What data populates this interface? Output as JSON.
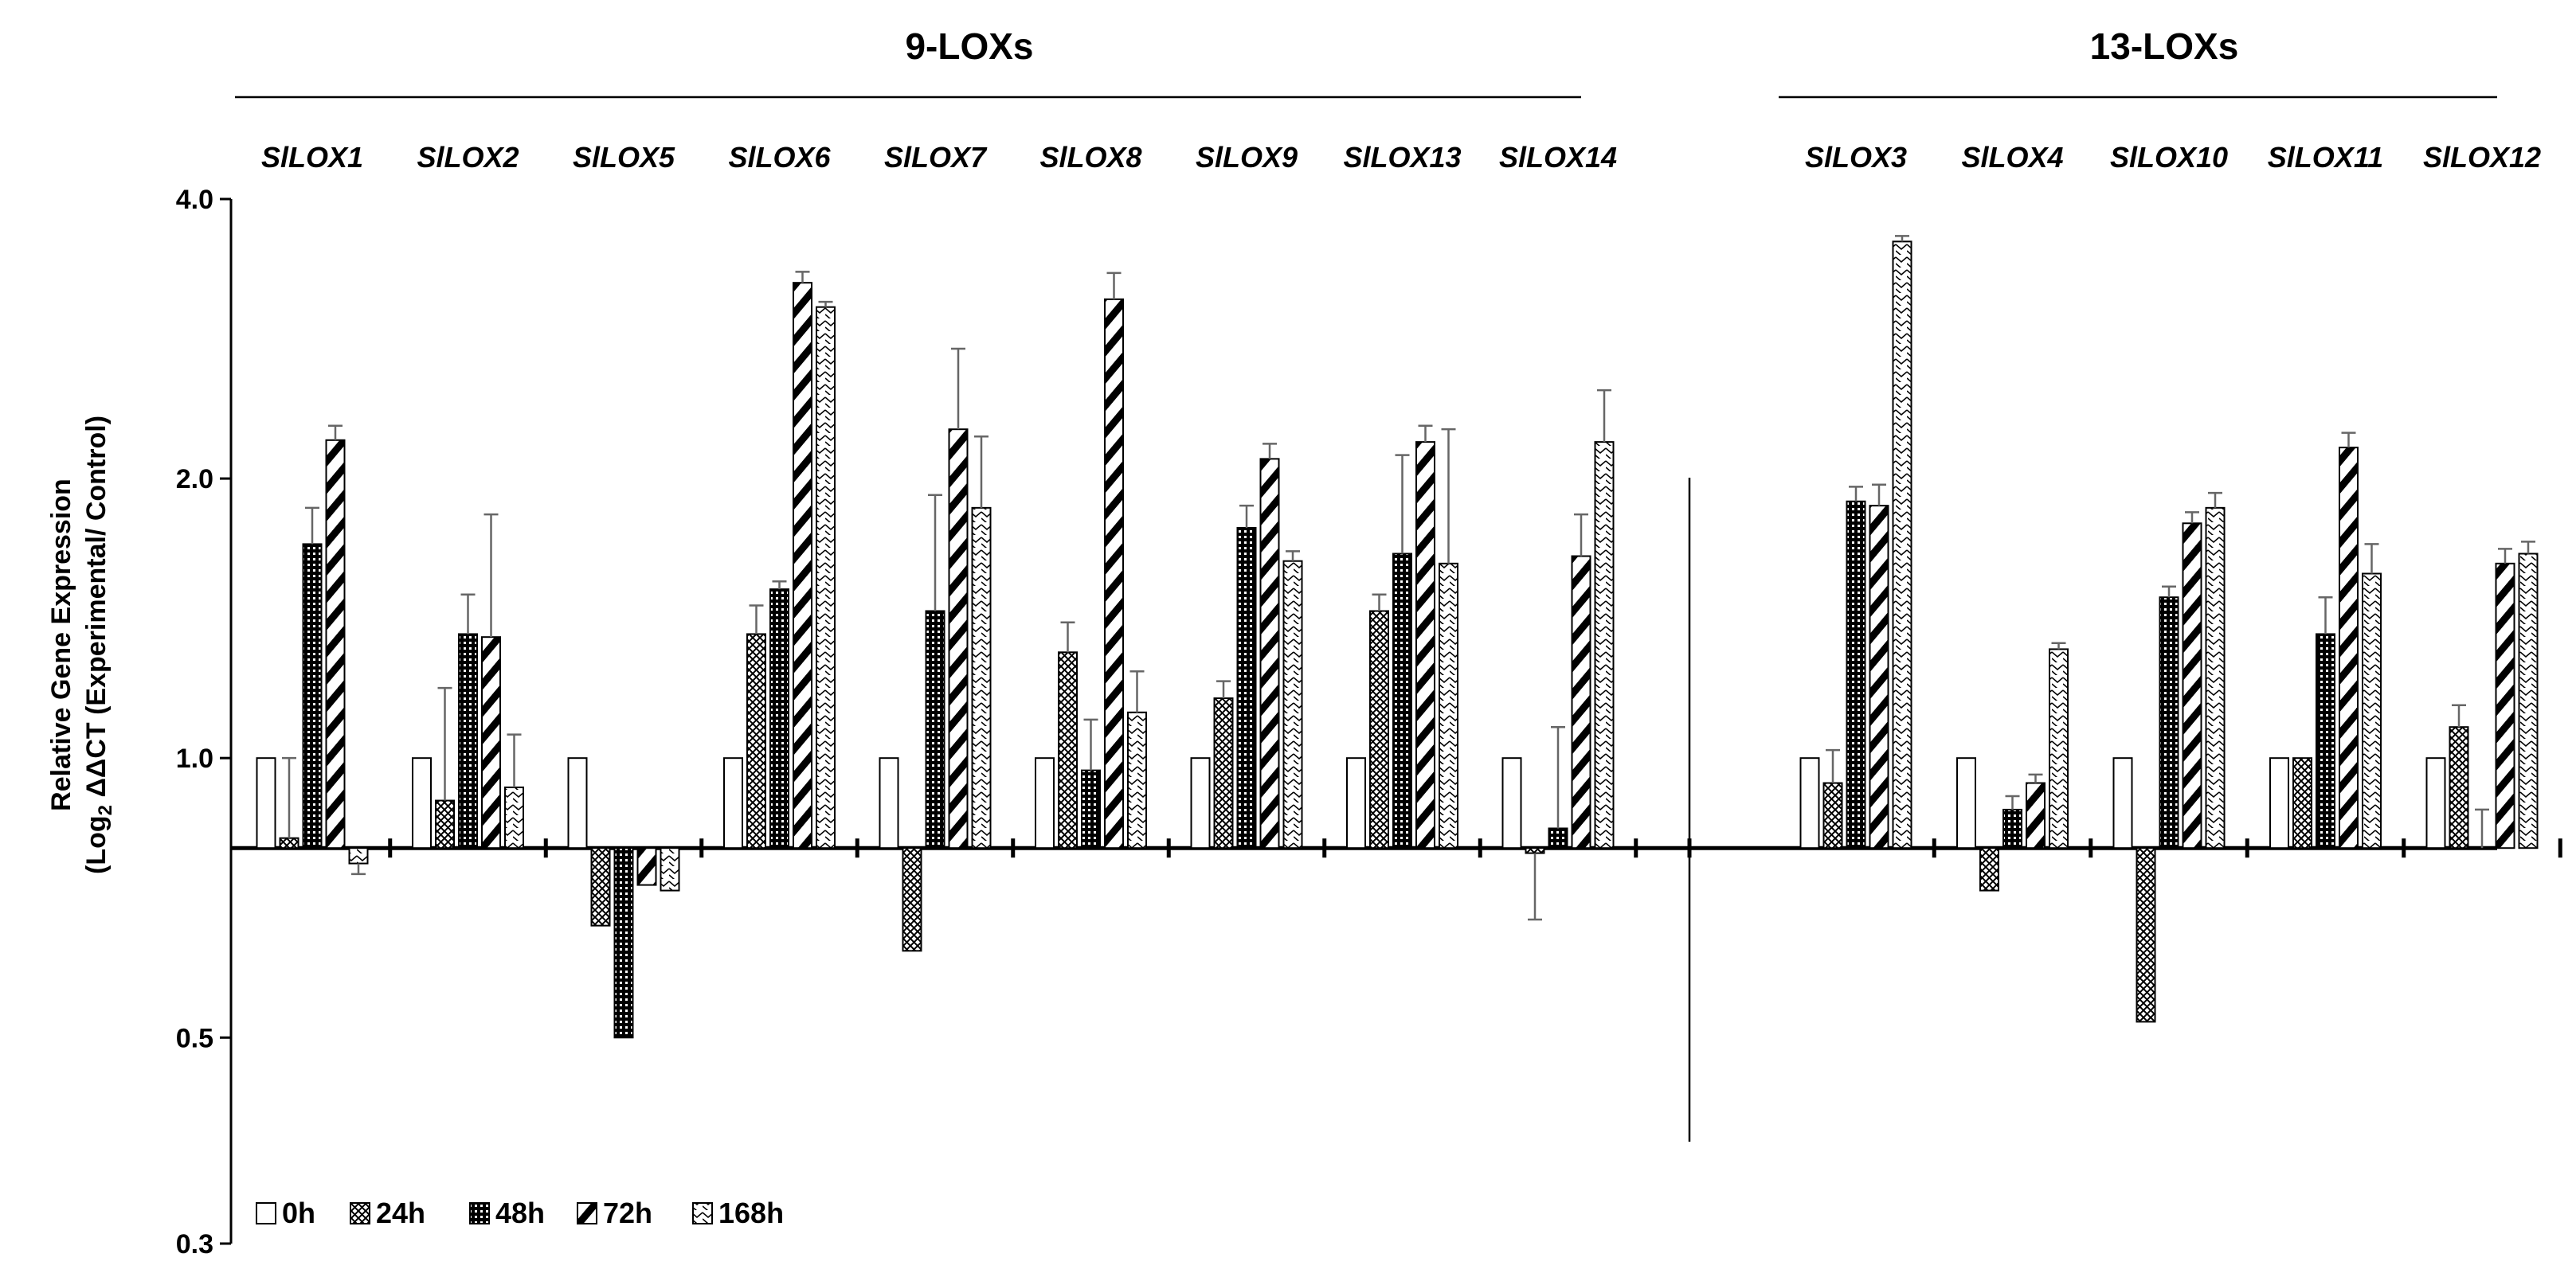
{
  "chart_data": {
    "type": "bar",
    "title": "",
    "groups": [
      {
        "title": "9-LOXs",
        "genes": [
          "SlLOX1",
          "SlLOX2",
          "SlLOX5",
          "SlLOX6",
          "SlLOX7",
          "SlLOX8",
          "SlLOX9",
          "SlLOX13",
          "SlLOX14"
        ]
      },
      {
        "title": "13-LOXs",
        "genes": [
          "SlLOX3",
          "SlLOX4",
          "SlLOX10",
          "SlLOX11",
          "SlLOX12"
        ]
      }
    ],
    "categories": [
      "SlLOX1",
      "SlLOX2",
      "SlLOX5",
      "SlLOX6",
      "SlLOX7",
      "SlLOX8",
      "SlLOX9",
      "SlLOX13",
      "SlLOX14",
      "SlLOX3",
      "SlLOX4",
      "SlLOX10",
      "SlLOX11",
      "SlLOX12"
    ],
    "ylabel_line1": "Relative Gene Expression",
    "ylabel_line2_prefix": "(Log",
    "ylabel_line2_sub": "2",
    "ylabel_line2_suffix": " ΔΔCT (Experimental/ Control)",
    "xlabel": "",
    "y_scale": "log2",
    "baseline": 0.8,
    "ylim": [
      0.3,
      4.0
    ],
    "y_ticks": [
      0.3,
      0.5,
      1.0,
      2.0,
      4.0
    ],
    "y_tick_labels": [
      "0.3",
      "0.5",
      "1.0",
      "2.0",
      "4.0"
    ],
    "series": [
      {
        "name": "0h",
        "pattern": "white",
        "values": [
          1.0,
          1.0,
          1.0,
          1.0,
          1.0,
          1.0,
          1.0,
          1.0,
          1.0,
          1.0,
          1.0,
          1.0,
          1.0,
          1.0
        ],
        "errors": [
          0,
          0,
          0,
          0,
          0,
          0,
          0,
          0,
          0,
          0,
          0,
          0,
          0,
          0
        ]
      },
      {
        "name": "24h",
        "pattern": "crosshatch",
        "values": [
          0.82,
          0.9,
          0.66,
          1.36,
          0.62,
          1.3,
          1.16,
          1.44,
          0.79,
          0.94,
          0.72,
          0.52,
          1.0,
          1.08
        ],
        "errors": [
          0.18,
          0.29,
          0,
          0.1,
          0,
          0.1,
          0.05,
          0.06,
          0.12,
          0.08,
          0,
          0,
          0,
          0.06
        ]
      },
      {
        "name": "48h",
        "pattern": "dense",
        "values": [
          1.7,
          1.36,
          0.5,
          1.52,
          1.44,
          0.97,
          1.77,
          1.66,
          0.84,
          1.89,
          0.88,
          1.49,
          1.36,
          0.8
        ],
        "errors": [
          0.16,
          0.14,
          0,
          0.03,
          0.48,
          0.13,
          0.1,
          0.46,
          0.24,
          0.07,
          0.03,
          0.04,
          0.13,
          0.08
        ]
      },
      {
        "name": "72h",
        "pattern": "diagonal",
        "values": [
          2.2,
          1.35,
          0.73,
          3.25,
          2.26,
          3.12,
          2.1,
          2.19,
          1.65,
          1.87,
          0.94,
          1.79,
          2.16,
          1.62
        ],
        "errors": [
          0.08,
          0.48,
          0,
          0.09,
          0.5,
          0.21,
          0.08,
          0.09,
          0.18,
          0.1,
          0.02,
          0.05,
          0.08,
          0.06
        ]
      },
      {
        "name": "168h",
        "pattern": "zigzag",
        "values": [
          0.77,
          0.93,
          0.72,
          3.06,
          1.86,
          1.12,
          1.63,
          1.62,
          2.19,
          3.6,
          1.31,
          1.86,
          1.58,
          1.66
        ],
        "errors": [
          0.02,
          0.13,
          0,
          0.04,
          0.36,
          0.12,
          0.04,
          0.64,
          0.3,
          0.05,
          0.02,
          0.07,
          0.12,
          0.05
        ]
      }
    ],
    "legend_position": "bottom-left",
    "grid": false
  }
}
